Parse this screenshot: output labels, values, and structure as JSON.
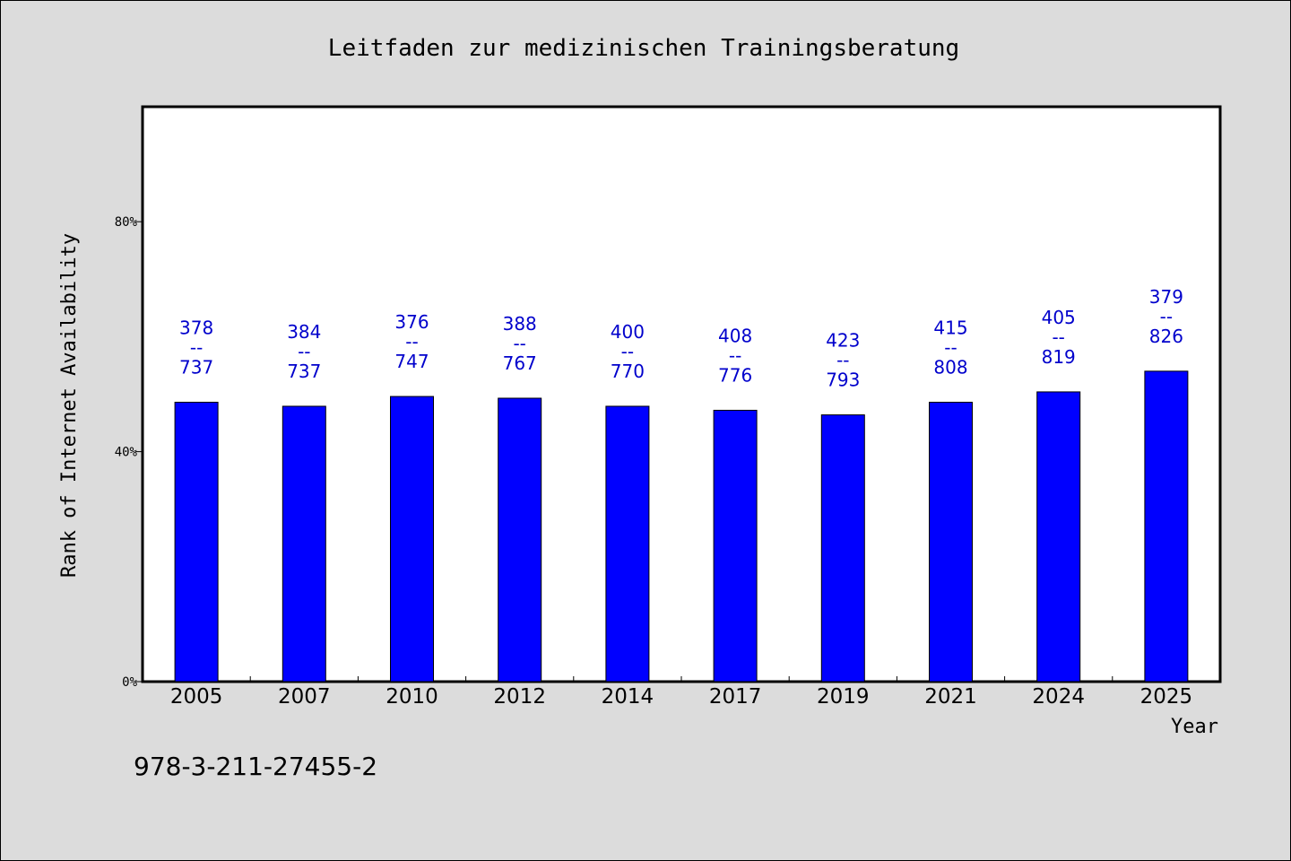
{
  "chart_data": {
    "type": "bar",
    "title": "Leitfaden zur medizinischen Trainingsberatung",
    "xlabel": "Year",
    "ylabel": "Rank of Internet Availability",
    "categories": [
      "2005",
      "2007",
      "2010",
      "2012",
      "2014",
      "2017",
      "2019",
      "2021",
      "2024",
      "2025"
    ],
    "values": [
      48.6,
      47.9,
      49.6,
      49.3,
      47.9,
      47.2,
      46.4,
      48.6,
      50.4,
      54.0
    ],
    "data_labels": [
      {
        "top": "378",
        "sep": "--",
        "bottom": "737"
      },
      {
        "top": "384",
        "sep": "--",
        "bottom": "737"
      },
      {
        "top": "376",
        "sep": "--",
        "bottom": "747"
      },
      {
        "top": "388",
        "sep": "--",
        "bottom": "767"
      },
      {
        "top": "400",
        "sep": "--",
        "bottom": "770"
      },
      {
        "top": "408",
        "sep": "--",
        "bottom": "776"
      },
      {
        "top": "423",
        "sep": "--",
        "bottom": "793"
      },
      {
        "top": "415",
        "sep": "--",
        "bottom": "808"
      },
      {
        "top": "405",
        "sep": "--",
        "bottom": "819"
      },
      {
        "top": "379",
        "sep": "--",
        "bottom": "826"
      }
    ],
    "ylim": [
      0,
      100
    ],
    "yticks": [
      0,
      40,
      80
    ],
    "ytick_labels": [
      "0%",
      "40%",
      "80%"
    ],
    "grid": false,
    "bar_color": "#0000ff",
    "label_color": "#0000cc",
    "background_color": "#dcdcdc",
    "plot_background_color": "#ffffff"
  },
  "footer": {
    "isbn": "978-3-211-27455-2"
  }
}
